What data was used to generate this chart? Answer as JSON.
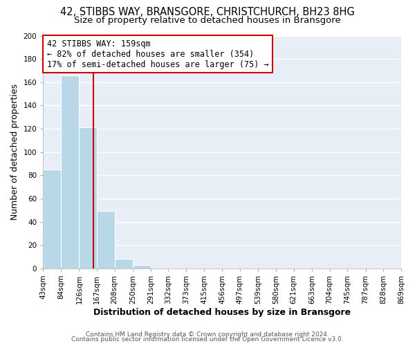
{
  "title_line1": "42, STIBBS WAY, BRANSGORE, CHRISTCHURCH, BH23 8HG",
  "title_line2": "Size of property relative to detached houses in Bransgore",
  "xlabel": "Distribution of detached houses by size in Bransgore",
  "ylabel": "Number of detached properties",
  "bar_edges": [
    43,
    84,
    126,
    167,
    208,
    250,
    291,
    332,
    373,
    415,
    456,
    497,
    539,
    580,
    621,
    663,
    704,
    745,
    787,
    828,
    869
  ],
  "bar_heights": [
    85,
    166,
    121,
    49,
    8,
    3,
    0,
    0,
    0,
    0,
    0,
    0,
    0,
    0,
    0,
    0,
    0,
    0,
    0,
    0
  ],
  "bar_color": "#b8d8e8",
  "property_line_x": 159,
  "property_line_color": "#cc0000",
  "annotation_title": "42 STIBBS WAY: 159sqm",
  "annotation_line1": "← 82% of detached houses are smaller (354)",
  "annotation_line2": "17% of semi-detached houses are larger (75) →",
  "annotation_box_facecolor": "#ffffff",
  "annotation_box_edgecolor": "#cc0000",
  "fig_background_color": "#ffffff",
  "plot_background_color": "#e8eef5",
  "grid_color": "#ffffff",
  "ylim": [
    0,
    200
  ],
  "yticks": [
    0,
    20,
    40,
    60,
    80,
    100,
    120,
    140,
    160,
    180,
    200
  ],
  "tick_labels": [
    "43sqm",
    "84sqm",
    "126sqm",
    "167sqm",
    "208sqm",
    "250sqm",
    "291sqm",
    "332sqm",
    "373sqm",
    "415sqm",
    "456sqm",
    "497sqm",
    "539sqm",
    "580sqm",
    "621sqm",
    "663sqm",
    "704sqm",
    "745sqm",
    "787sqm",
    "828sqm",
    "869sqm"
  ],
  "footer_line1": "Contains HM Land Registry data © Crown copyright and database right 2024.",
  "footer_line2": "Contains public sector information licensed under the Open Government Licence v3.0.",
  "title_fontsize": 10.5,
  "subtitle_fontsize": 9.5,
  "axis_label_fontsize": 9,
  "tick_fontsize": 7.5,
  "annotation_fontsize": 8.5,
  "footer_fontsize": 6.5
}
